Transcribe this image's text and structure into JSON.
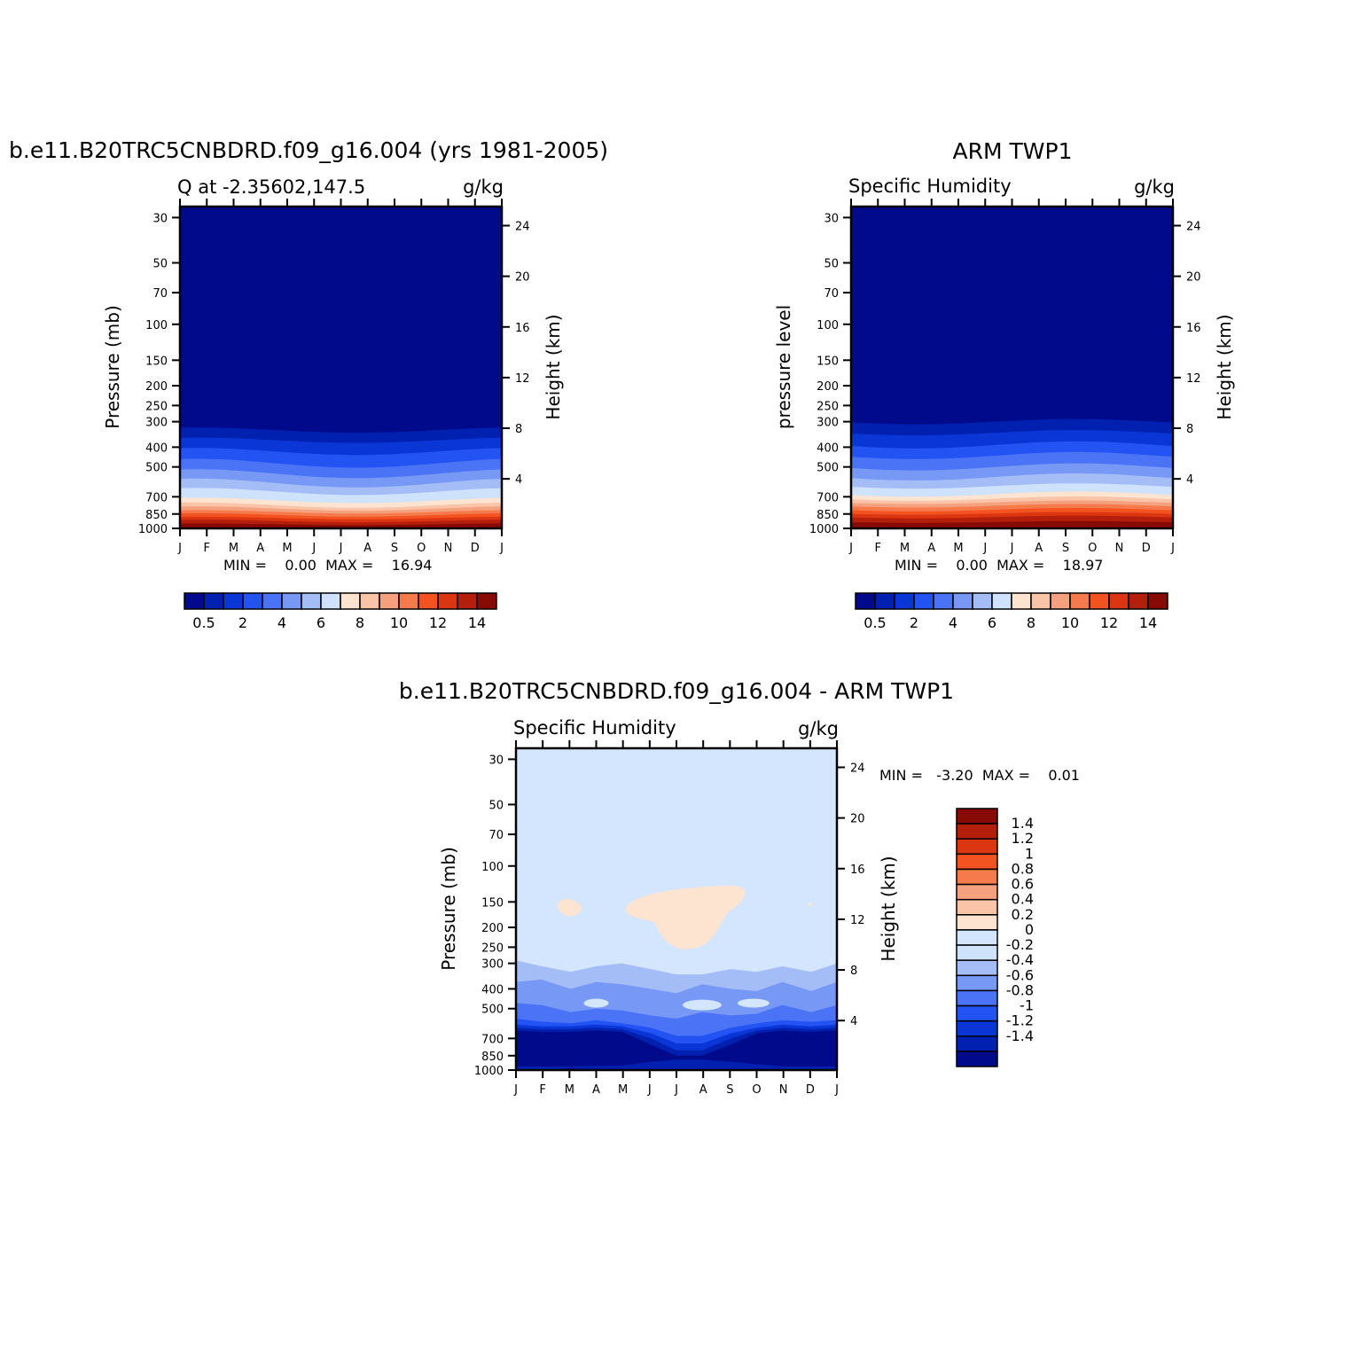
{
  "chart_data": [
    {
      "type": "heatmap",
      "title": "b.e11.B20TRC5CNBDRD.f09_g16.004 (yrs 1981-2005)",
      "left_subtitle": "Q at -2.35602,147.5",
      "right_subtitle": "g/kg",
      "ylabel": "Pressure (mb)",
      "ylabel_right": "Height (km)",
      "x_ticks": [
        "J",
        "F",
        "M",
        "A",
        "M",
        "J",
        "J",
        "A",
        "S",
        "O",
        "N",
        "D",
        "J"
      ],
      "y_ticks": [
        "30",
        "50",
        "70",
        "100",
        "150",
        "200",
        "250",
        "300",
        "400",
        "500",
        "700",
        "850",
        "1000"
      ],
      "y_ticks_right": [
        "24",
        "20",
        "16",
        "12",
        "8",
        "4"
      ],
      "min_max_text": "MIN =    0.00  MAX =    16.94",
      "colorbar_labels": [
        "0.5",
        "2",
        "4",
        "6",
        "8",
        "10",
        "12",
        "14"
      ]
    },
    {
      "type": "heatmap",
      "title": "ARM TWP1",
      "left_subtitle": "Specific Humidity",
      "right_subtitle": "g/kg",
      "ylabel": "pressure level",
      "ylabel_right": "Height (km)",
      "x_ticks": [
        "J",
        "F",
        "M",
        "A",
        "M",
        "J",
        "J",
        "A",
        "S",
        "O",
        "N",
        "D",
        "J"
      ],
      "y_ticks": [
        "30",
        "50",
        "70",
        "100",
        "150",
        "200",
        "250",
        "300",
        "400",
        "500",
        "700",
        "850",
        "1000"
      ],
      "y_ticks_right": [
        "24",
        "20",
        "16",
        "12",
        "8",
        "4"
      ],
      "min_max_text": "MIN =    0.00  MAX =    18.97",
      "colorbar_labels": [
        "0.5",
        "2",
        "4",
        "6",
        "8",
        "10",
        "12",
        "14"
      ]
    },
    {
      "type": "heatmap",
      "title": "b.e11.B20TRC5CNBDRD.f09_g16.004 - ARM TWP1",
      "left_subtitle": "Specific Humidity",
      "right_subtitle": "g/kg",
      "ylabel": "Pressure (mb)",
      "ylabel_right": "Height (km)",
      "x_ticks": [
        "J",
        "F",
        "M",
        "A",
        "M",
        "J",
        "J",
        "A",
        "S",
        "O",
        "N",
        "D",
        "J"
      ],
      "y_ticks": [
        "30",
        "50",
        "70",
        "100",
        "150",
        "200",
        "250",
        "300",
        "400",
        "500",
        "700",
        "850",
        "1000"
      ],
      "y_ticks_right": [
        "24",
        "20",
        "16",
        "12",
        "8",
        "4"
      ],
      "min_max_text": "MIN =   -3.20  MAX =    0.01",
      "colorbar_labels": [
        "1.4",
        "1.2",
        "1",
        "0.8",
        "0.6",
        "0.4",
        "0.2",
        "0",
        "-0.2",
        "-0.4",
        "-0.6",
        "-0.8",
        "-1",
        "-1.2",
        "-1.4"
      ]
    }
  ],
  "colors": {
    "seq_palette": [
      "#000a8a",
      "#0020b0",
      "#0a36d6",
      "#2353f2",
      "#4a74f5",
      "#7898f5",
      "#a5bdf7",
      "#cfe2fb",
      "#fde4d0",
      "#f9c4a7",
      "#f5a07e",
      "#f57a4c",
      "#f25320",
      "#dc3512",
      "#b31f0a",
      "#870a06"
    ],
    "diff_palette": [
      "#000a8a",
      "#0020b0",
      "#0a36d6",
      "#2353f2",
      "#4a74f5",
      "#7898f5",
      "#a5bdf7",
      "#cfe2fb",
      "#d4e6fd",
      "#fde4d0",
      "#f9c4a7",
      "#f5a07e",
      "#f57a4c",
      "#f25320",
      "#dc3512",
      "#b31f0a",
      "#870a06"
    ]
  }
}
